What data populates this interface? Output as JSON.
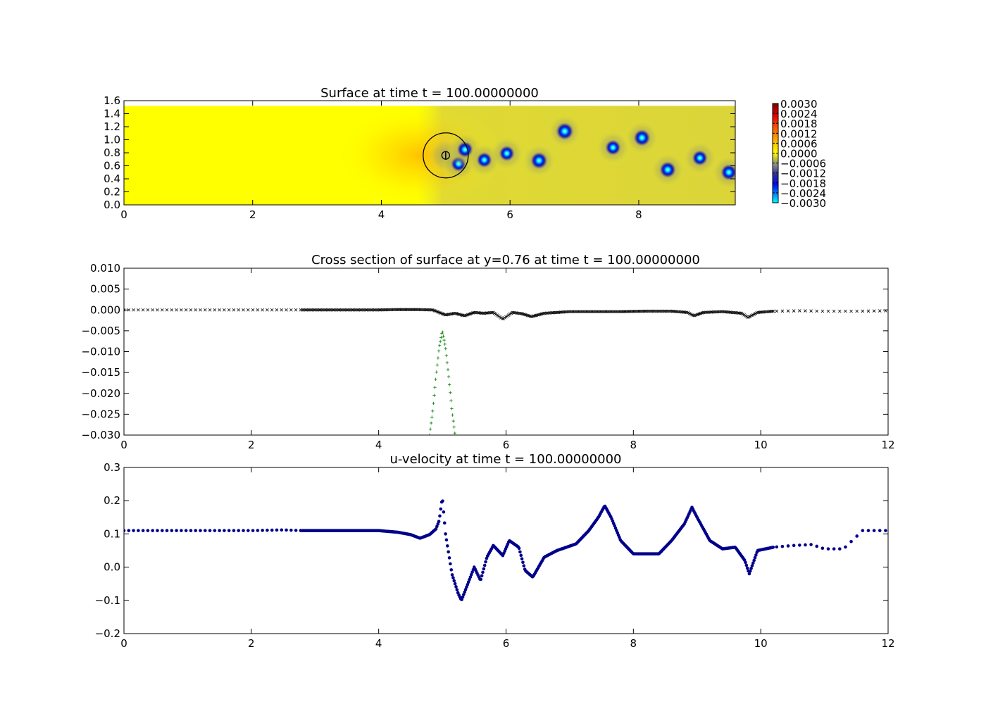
{
  "figure": {
    "panels": [
      {
        "title": "Surface at time t =   100.00000000",
        "x_ticks": [
          "0",
          "2",
          "4",
          "6",
          "8"
        ],
        "y_ticks": [
          "0.0",
          "0.2",
          "0.4",
          "0.6",
          "0.8",
          "1.0",
          "1.2",
          "1.4",
          "1.6"
        ],
        "colorbar_ticks": [
          "0.0030",
          "0.0024",
          "0.0018",
          "0.0012",
          "0.0006",
          "0.0000",
          "−0.0006",
          "−0.0012",
          "−0.0018",
          "−0.0024",
          "−0.0030"
        ]
      },
      {
        "title": "Cross section of surface at y=0.76 at time t =   100.00000000",
        "x_ticks": [
          "0",
          "2",
          "4",
          "6",
          "8",
          "10",
          "12"
        ],
        "y_ticks": [
          "0.010",
          "0.005",
          "0.000",
          "−0.005",
          "−0.010",
          "−0.015",
          "−0.020",
          "−0.025",
          "−0.030"
        ]
      },
      {
        "title": "u-velocity at time t =   100.00000000",
        "x_ticks": [
          "0",
          "2",
          "4",
          "6",
          "8",
          "10",
          "12"
        ],
        "y_ticks": [
          "0.3",
          "0.2",
          "0.1",
          "0.0",
          "−0.1",
          "−0.2"
        ]
      }
    ]
  },
  "chart_data": [
    {
      "type": "heatmap",
      "title": "Surface at time t =   100.00000000",
      "xlim": [
        0,
        9.5
      ],
      "ylim": [
        0,
        1.6
      ],
      "domain_ymax": 1.52,
      "colormap": "dark-cyan-blue-gray-yellow-red-darkred",
      "colorbar_range": [
        -0.003,
        0.003
      ],
      "background_value": 0.0,
      "vortices": [
        {
          "x": 5.0,
          "y": 0.76,
          "value": -0.0003
        },
        {
          "x": 5.2,
          "y": 0.63,
          "value": -0.0022
        },
        {
          "x": 5.3,
          "y": 0.85,
          "value": -0.0025
        },
        {
          "x": 5.6,
          "y": 0.69,
          "value": -0.0022
        },
        {
          "x": 5.95,
          "y": 0.79,
          "value": -0.0022
        },
        {
          "x": 6.45,
          "y": 0.68,
          "value": -0.0028
        },
        {
          "x": 6.85,
          "y": 1.13,
          "value": -0.003
        },
        {
          "x": 7.6,
          "y": 0.88,
          "value": -0.0022
        },
        {
          "x": 8.05,
          "y": 1.03,
          "value": -0.0027
        },
        {
          "x": 8.45,
          "y": 0.54,
          "value": -0.0026
        },
        {
          "x": 8.95,
          "y": 0.72,
          "value": -0.0022
        },
        {
          "x": 9.4,
          "y": 0.5,
          "value": -0.0025
        }
      ],
      "overlay_circles": [
        {
          "cx": 5.0,
          "cy": 0.76,
          "r": 0.35
        },
        {
          "cx": 5.0,
          "cy": 0.76,
          "r": 0.06
        }
      ]
    },
    {
      "type": "scatter",
      "title": "Cross section of surface at y=0.76 at time t =   100.00000000",
      "xlim": [
        0,
        12
      ],
      "ylim": [
        -0.03,
        0.01
      ],
      "series": [
        {
          "marker": "x",
          "color": "#000000",
          "x": [
            0,
            0.5,
            1,
            1.5,
            2,
            2.5,
            2.8,
            3.5,
            4,
            4.3,
            4.6,
            4.85,
            4.95,
            5.05,
            5.2,
            5.35,
            5.5,
            5.65,
            5.8,
            5.95,
            6.1,
            6.25,
            6.4,
            6.6,
            7.0,
            7.4,
            7.8,
            8.2,
            8.6,
            8.85,
            8.95,
            9.1,
            9.4,
            9.7,
            9.8,
            9.95,
            10.2,
            10.6,
            11.0,
            11.5,
            12.0
          ],
          "y": [
            0.0,
            0.0,
            0.0,
            0.0,
            0.0,
            0.0,
            0.0,
            0.0,
            0.0,
            0.0001,
            0.0001,
            0.0,
            -0.0006,
            -0.0012,
            -0.0008,
            -0.0014,
            -0.0006,
            -0.0008,
            -0.0006,
            -0.0022,
            -0.0006,
            -0.0009,
            -0.0016,
            -0.0008,
            -0.0004,
            -0.0004,
            -0.0004,
            -0.0003,
            -0.0003,
            -0.0006,
            -0.0014,
            -0.0006,
            -0.0004,
            -0.0008,
            -0.0018,
            -0.0006,
            -0.0003,
            -0.0002,
            -0.0003,
            -0.0003,
            -0.0002
          ]
        },
        {
          "marker": "+",
          "color": "#008000",
          "x": [
            4.8,
            4.85,
            4.9,
            4.95,
            5.0,
            5.05,
            5.1,
            5.15,
            5.2
          ],
          "y": [
            -0.03,
            -0.024,
            -0.016,
            -0.009,
            -0.005,
            -0.009,
            -0.016,
            -0.024,
            -0.03
          ]
        }
      ]
    },
    {
      "type": "scatter",
      "title": "u-velocity at time t =   100.00000000",
      "xlim": [
        0,
        12
      ],
      "ylim": [
        -0.2,
        0.3
      ],
      "series": [
        {
          "marker": "o",
          "color": "#00008b",
          "x": [
            0,
            0.5,
            1,
            1.5,
            2,
            2.5,
            2.8,
            3.5,
            4,
            4.3,
            4.5,
            4.65,
            4.8,
            4.9,
            4.95,
            5.0,
            5.05,
            5.15,
            5.25,
            5.3,
            5.4,
            5.5,
            5.6,
            5.7,
            5.8,
            5.95,
            6.05,
            6.2,
            6.3,
            6.42,
            6.6,
            6.8,
            7.1,
            7.3,
            7.45,
            7.55,
            7.65,
            7.8,
            8.0,
            8.2,
            8.4,
            8.6,
            8.8,
            8.92,
            9.0,
            9.2,
            9.4,
            9.6,
            9.75,
            9.82,
            9.95,
            10.2,
            10.5,
            10.8,
            11.0,
            11.3,
            11.6,
            12.0
          ],
          "y": [
            0.11,
            0.11,
            0.11,
            0.11,
            0.11,
            0.112,
            0.11,
            0.11,
            0.11,
            0.105,
            0.098,
            0.087,
            0.098,
            0.115,
            0.14,
            0.21,
            0.1,
            -0.02,
            -0.08,
            -0.1,
            -0.05,
            0.0,
            -0.04,
            0.03,
            0.065,
            0.035,
            0.08,
            0.06,
            -0.01,
            -0.03,
            0.03,
            0.05,
            0.07,
            0.11,
            0.15,
            0.185,
            0.15,
            0.08,
            0.04,
            0.04,
            0.04,
            0.08,
            0.13,
            0.18,
            0.15,
            0.08,
            0.055,
            0.06,
            0.02,
            -0.02,
            0.05,
            0.06,
            0.065,
            0.068,
            0.055,
            0.055,
            0.11,
            0.11
          ]
        }
      ]
    }
  ]
}
